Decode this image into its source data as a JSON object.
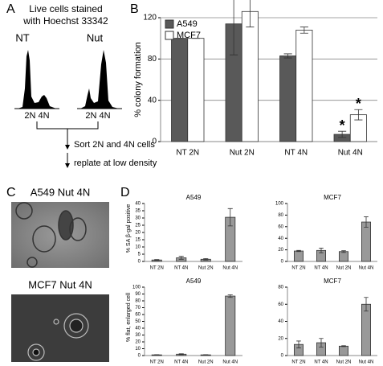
{
  "panels": {
    "a": "A",
    "b": "B",
    "c": "C",
    "d": "D"
  },
  "diagram": {
    "stain_line1": "Live cells stained",
    "stain_line2": "with Hoechst 33342",
    "left_label": "NT",
    "right_label": "Nut",
    "left_peaks": "2N 4N",
    "right_peaks": "2N 4N",
    "sort": "Sort 2N and 4N cells",
    "replate": "replate at low density"
  },
  "images": [
    {
      "label": "A549 Nut 4N"
    },
    {
      "label": "MCF7 Nut 4N"
    }
  ],
  "chart_data": [
    {
      "type": "bar",
      "y_label": "% colony formation",
      "categories": [
        "NT 2N",
        "Nut 2N",
        "NT 4N",
        "Nut 4N"
      ],
      "series": [
        {
          "name": "A549",
          "color": "#595959",
          "values": [
            100,
            114,
            83,
            7
          ],
          "errors": [
            0,
            30,
            2,
            3
          ]
        },
        {
          "name": "MCF7",
          "color": "#ffffff",
          "values": [
            100,
            126,
            108,
            26
          ],
          "errors": [
            0,
            15,
            3,
            5
          ]
        }
      ],
      "annotations": [
        "*",
        "*"
      ],
      "ylim": [
        0,
        120
      ],
      "yticks": [
        0,
        40,
        80,
        120
      ],
      "grid": true,
      "legend": "top-left"
    },
    {
      "type": "bar",
      "title": "A549",
      "y_label": "% SA β-gal positive",
      "categories": [
        "NT 2N",
        "NT 4N",
        "Nut 2N",
        "Nut 4N"
      ],
      "values": [
        1,
        2.5,
        1.5,
        30.5
      ],
      "errors": [
        0.3,
        1,
        0.5,
        6
      ],
      "color": "#999999",
      "ylim": [
        0,
        40
      ],
      "yticks": [
        0,
        5,
        10,
        15,
        20,
        25,
        30,
        35,
        40
      ],
      "grid": false
    },
    {
      "type": "bar",
      "title": "MCF7",
      "categories": [
        "NT 2N",
        "NT 4N",
        "Nut 2N",
        "Nut 4N"
      ],
      "values": [
        18,
        19,
        17,
        68
      ],
      "errors": [
        1,
        4,
        1.5,
        9
      ],
      "color": "#999999",
      "ylim": [
        0,
        100
      ],
      "yticks": [
        0,
        20,
        40,
        60,
        80,
        100
      ],
      "grid": false
    },
    {
      "type": "bar",
      "title": "A549",
      "y_label": "% flat, enlarged cell",
      "categories": [
        "NT 2N",
        "NT 4N",
        "Nut 2N",
        "Nut 4N"
      ],
      "values": [
        1,
        2,
        1,
        87
      ],
      "errors": [
        0.3,
        0.6,
        0.3,
        2
      ],
      "color": "#999999",
      "ylim": [
        0,
        100
      ],
      "yticks": [
        0,
        10,
        20,
        30,
        40,
        50,
        60,
        70,
        80,
        90,
        100
      ],
      "grid": false
    },
    {
      "type": "bar",
      "title": "MCF7",
      "categories": [
        "NT 2N",
        "NT 4N",
        "Nut 2N",
        "Nut 4N"
      ],
      "values": [
        13,
        15,
        11,
        60
      ],
      "errors": [
        4,
        5,
        0.5,
        8
      ],
      "color": "#999999",
      "ylim": [
        0,
        80
      ],
      "yticks": [
        0,
        20,
        40,
        60,
        80
      ],
      "grid": false
    }
  ]
}
